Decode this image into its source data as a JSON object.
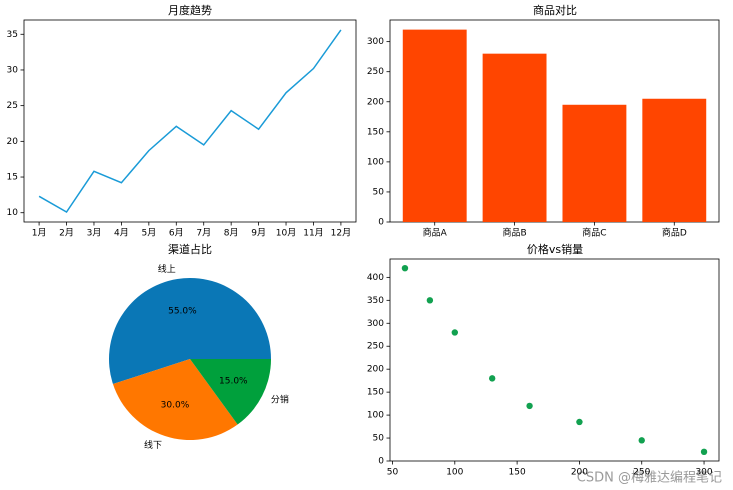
{
  "chart_data": [
    {
      "type": "line",
      "title": "月度趋势",
      "categories": [
        "1月",
        "2月",
        "3月",
        "4月",
        "5月",
        "6月",
        "7月",
        "8月",
        "9月",
        "10月",
        "11月",
        "12月"
      ],
      "values": [
        12.3,
        10.1,
        15.8,
        14.2,
        18.7,
        22.1,
        19.5,
        24.3,
        21.7,
        26.8,
        30.2,
        35.6
      ],
      "color": "#1a9bd7",
      "ylim": [
        8.7,
        37
      ],
      "yticks": [
        10,
        15,
        20,
        25,
        30,
        35
      ]
    },
    {
      "type": "bar",
      "title": "商品对比",
      "categories": [
        "商品A",
        "商品B",
        "商品C",
        "商品D"
      ],
      "values": [
        320,
        280,
        195,
        205
      ],
      "color": "#ff4500",
      "ylim": [
        0,
        336
      ],
      "yticks": [
        0,
        50,
        100,
        150,
        200,
        250,
        300
      ]
    },
    {
      "type": "pie",
      "title": "渠道占比",
      "categories": [
        "线上",
        "线下",
        "分销"
      ],
      "values": [
        55,
        30,
        15
      ],
      "value_labels": [
        "55.0%",
        "30.0%",
        "15.0%"
      ],
      "colors": [
        "#0a77b6",
        "#ff7700",
        "#00a03c"
      ]
    },
    {
      "type": "scatter",
      "title": "价格vs销量",
      "x": [
        60,
        80,
        100,
        130,
        160,
        200,
        250,
        300
      ],
      "values": [
        420,
        350,
        280,
        180,
        120,
        85,
        45,
        20
      ],
      "color": "#12a150",
      "xlim": [
        48,
        312
      ],
      "xticks": [
        50,
        100,
        150,
        200,
        250,
        300
      ],
      "ylim": [
        0,
        440
      ],
      "yticks": [
        0,
        50,
        100,
        150,
        200,
        250,
        300,
        350,
        400
      ]
    }
  ],
  "watermark": "CSDN @梅雅达编程笔记"
}
